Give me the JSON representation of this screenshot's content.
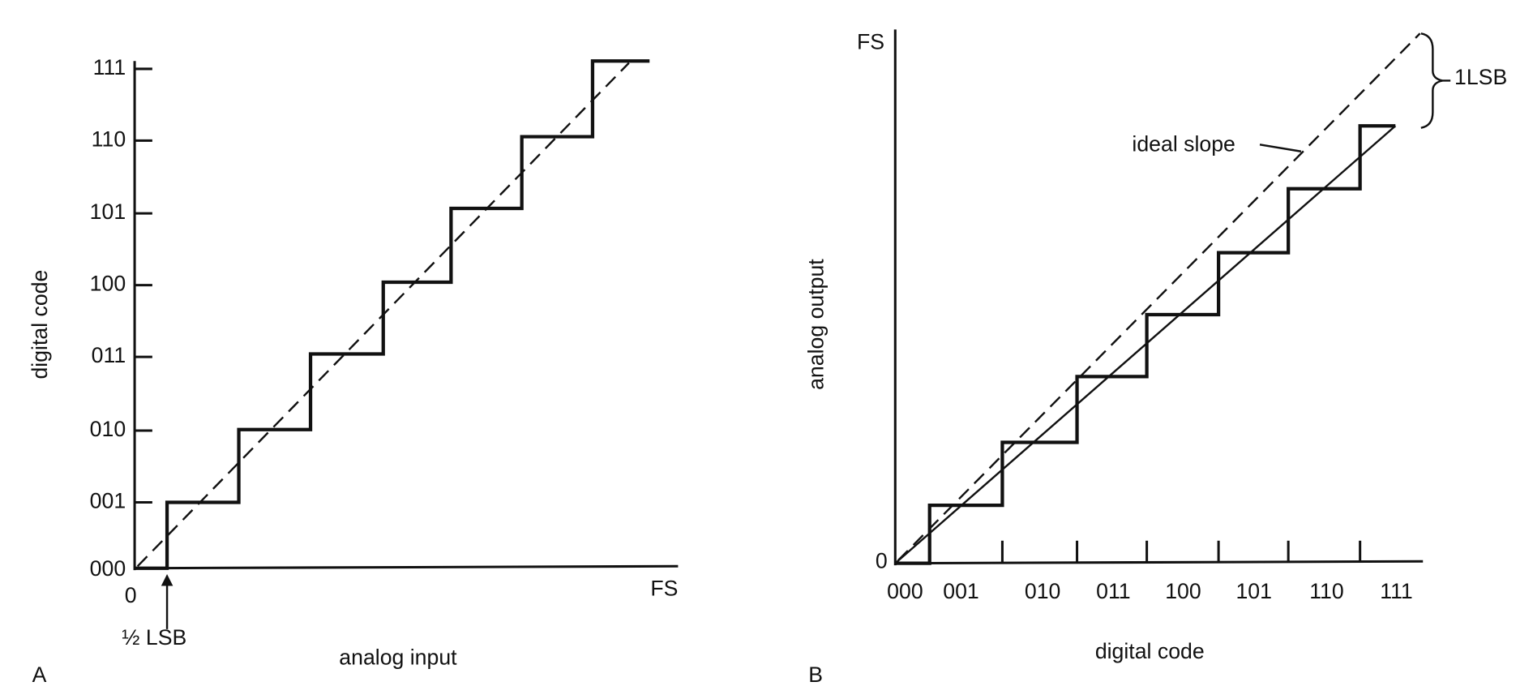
{
  "panels": [
    {
      "label": "A",
      "x_axis": {
        "title": "analog input",
        "start": "0",
        "end": "FS"
      },
      "y_axis": {
        "title": "digital code",
        "ticks": [
          "000",
          "001",
          "010",
          "011",
          "100",
          "101",
          "110",
          "111"
        ]
      },
      "annotation": "½ LSB"
    },
    {
      "label": "B",
      "x_axis": {
        "title": "digital code",
        "ticks": [
          "000",
          "001",
          "010",
          "011",
          "100",
          "101",
          "110",
          "111"
        ]
      },
      "y_axis": {
        "title": "analog output",
        "start": "0",
        "end": "FS"
      },
      "annotations": [
        "ideal slope",
        "1LSB"
      ]
    }
  ]
}
